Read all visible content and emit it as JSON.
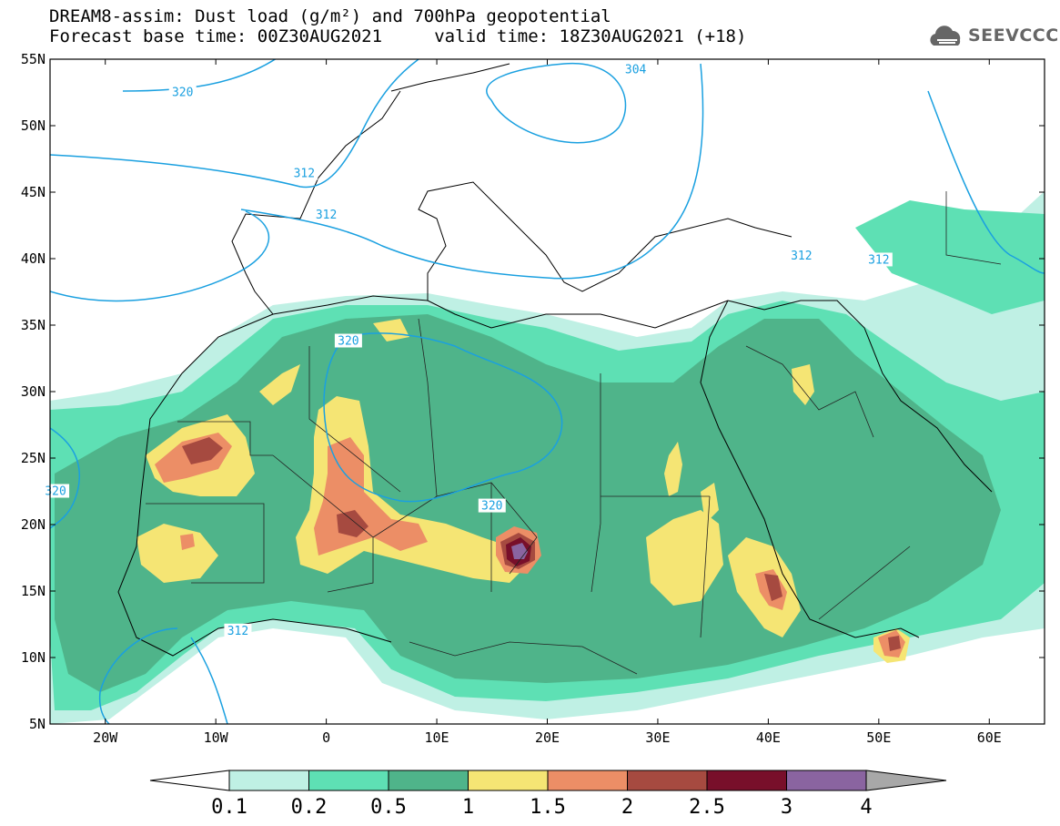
{
  "title": {
    "line1": "DREAM8-assim: Dust load (g/m²) and 700hPa geopotential",
    "line2": "Forecast base time: 00Z30AUG2021     valid time: 18Z30AUG2021 (+18)"
  },
  "logo": {
    "text": "SEEVCCC",
    "icon": "cloud-icon"
  },
  "axes": {
    "lat_labels": [
      "55N",
      "50N",
      "45N",
      "40N",
      "35N",
      "30N",
      "25N",
      "20N",
      "15N",
      "10N",
      "5N"
    ],
    "lon_labels": [
      "20W",
      "10W",
      "0",
      "10E",
      "20E",
      "30E",
      "40E",
      "50E",
      "60E"
    ]
  },
  "contours": [
    {
      "label": "320",
      "lon": -13,
      "lat": 52.5
    },
    {
      "label": "304",
      "lon": 28,
      "lat": 54.2
    },
    {
      "label": "312",
      "lon": -2,
      "lat": 46.4
    },
    {
      "label": "312",
      "lon": 0,
      "lat": 43.3
    },
    {
      "label": "312",
      "lon": 43,
      "lat": 40.2
    },
    {
      "label": "312",
      "lon": 50,
      "lat": 39.9
    },
    {
      "label": "320",
      "lon": 2,
      "lat": 33.8
    },
    {
      "label": "320",
      "lon": 15,
      "lat": 21.4
    },
    {
      "label": "320",
      "lon": -24.5,
      "lat": 22.5
    },
    {
      "label": "312",
      "lon": -8,
      "lat": 12
    }
  ],
  "colorbar": {
    "labels": [
      "0.1",
      "0.2",
      "0.5",
      "1",
      "1.5",
      "2",
      "2.5",
      "3",
      "4"
    ],
    "colors": [
      "#bff0e4",
      "#5ee0b4",
      "#4fb48a",
      "#f5e574",
      "#ec8e66",
      "#a64a40",
      "#780f2a",
      "#8a64a0"
    ],
    "under_color": "#ffffff",
    "over_color": "#a8a8a8",
    "unit": "g/m²"
  },
  "contour_color": "#1aa0e0"
}
